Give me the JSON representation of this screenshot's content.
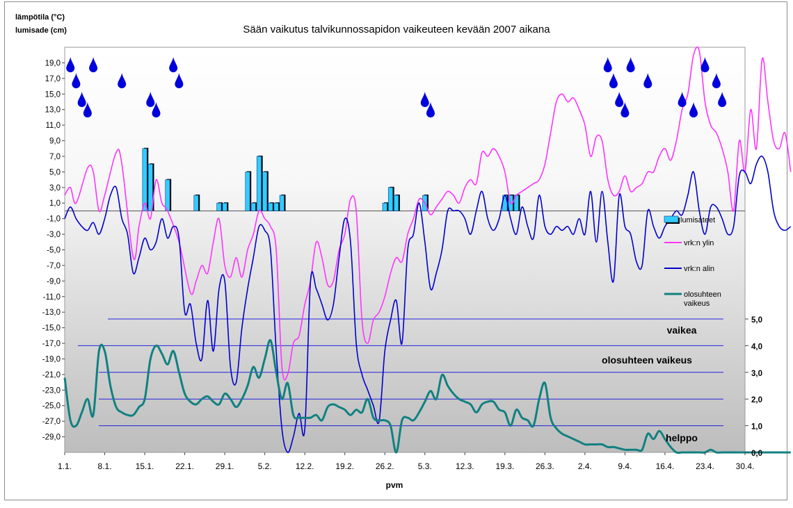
{
  "chart_data": {
    "type": "combo",
    "title": "Sään vaikutus talvikunnossapidon vaikeuteen kevään 2007 aikana",
    "ylabel_line1": "lämpötila (°C)",
    "ylabel_line2": "lumisade (cm)",
    "xlabel": "pvm",
    "x_tick_labels": [
      "1.1.",
      "8.1.",
      "15.1.",
      "22.1.",
      "29.1.",
      "5.2.",
      "12.2.",
      "19.2.",
      "26.2.",
      "5.3.",
      "12.3.",
      "19.3.",
      "26.3.",
      "2.4.",
      "9.4.",
      "16.4.",
      "23.4.",
      "30.4."
    ],
    "y_left_range": [
      -31,
      21
    ],
    "y_left_ticks": [
      "19,0",
      "17,0",
      "15,0",
      "13,0",
      "11,0",
      "9,0",
      "7,0",
      "5,0",
      "3,0",
      "1,0",
      "-1,0",
      "-3,0",
      "-5,0",
      "-7,0",
      "-9,0",
      "-11,0",
      "-13,0",
      "-15,0",
      "-17,0",
      "-19,0",
      "-21,0",
      "-23,0",
      "-25,0",
      "-27,0",
      "-29,0"
    ],
    "y_right_range": [
      0,
      5
    ],
    "y_right_ticks": [
      "0,0",
      "1,0",
      "2,0",
      "3,0",
      "4,0",
      "5,0"
    ],
    "legend": [
      "lumisateet",
      "vrk:n ylin",
      "vrk:n alin",
      "olosuhteen vaikeus"
    ],
    "band_labels": {
      "high": "vaikea",
      "mid": "olosuhteen vaikeus",
      "low": "helppo"
    },
    "colors": {
      "snow": "#33ccff",
      "tmax": "#ff33ff",
      "tmin": "#0000cc",
      "difficulty": "#118080",
      "grid": "#2222dd",
      "rain": "#0000dd"
    },
    "snowfall_cm": [
      {
        "day": 15,
        "cm": 8
      },
      {
        "day": 16,
        "cm": 6
      },
      {
        "day": 19,
        "cm": 4
      },
      {
        "day": 24,
        "cm": 2
      },
      {
        "day": 28,
        "cm": 1
      },
      {
        "day": 29,
        "cm": 1
      },
      {
        "day": 33,
        "cm": 5
      },
      {
        "day": 34,
        "cm": 1
      },
      {
        "day": 35,
        "cm": 7
      },
      {
        "day": 36,
        "cm": 5
      },
      {
        "day": 37,
        "cm": 1
      },
      {
        "day": 38,
        "cm": 1
      },
      {
        "day": 39,
        "cm": 2
      },
      {
        "day": 57,
        "cm": 1
      },
      {
        "day": 58,
        "cm": 3
      },
      {
        "day": 59,
        "cm": 2
      },
      {
        "day": 64,
        "cm": 2
      },
      {
        "day": 78,
        "cm": 2
      },
      {
        "day": 79,
        "cm": 2
      },
      {
        "day": 80,
        "cm": 2
      }
    ],
    "tmax": [
      [
        1,
        2
      ],
      [
        2,
        3
      ],
      [
        3,
        1
      ],
      [
        5,
        5.5
      ],
      [
        6,
        5
      ],
      [
        7,
        0
      ],
      [
        8,
        2
      ],
      [
        10,
        7.5
      ],
      [
        11,
        6
      ],
      [
        13,
        -6
      ],
      [
        14,
        -2
      ],
      [
        15,
        1
      ],
      [
        16,
        -1
      ],
      [
        17,
        4
      ],
      [
        18,
        1
      ],
      [
        19,
        0
      ],
      [
        21,
        -4
      ],
      [
        23,
        -10.5
      ],
      [
        24,
        -9
      ],
      [
        25,
        -7
      ],
      [
        26,
        -8
      ],
      [
        27,
        -4
      ],
      [
        28,
        -1
      ],
      [
        29,
        -7
      ],
      [
        30,
        -8.5
      ],
      [
        31,
        -6
      ],
      [
        32,
        -8.5
      ],
      [
        33,
        -5
      ],
      [
        34,
        -3
      ],
      [
        35,
        0
      ],
      [
        36,
        -1
      ],
      [
        37,
        -2
      ],
      [
        38,
        -5
      ],
      [
        39,
        -20
      ],
      [
        40,
        -21
      ],
      [
        41,
        -17
      ],
      [
        42,
        -16
      ],
      [
        43,
        -12
      ],
      [
        44,
        -9
      ],
      [
        45,
        -4
      ],
      [
        46,
        -6
      ],
      [
        47,
        -9.5
      ],
      [
        48,
        -9
      ],
      [
        49,
        -5
      ],
      [
        50,
        -3
      ],
      [
        51,
        1.5
      ],
      [
        52,
        0
      ],
      [
        53,
        -14
      ],
      [
        54,
        -17
      ],
      [
        55,
        -14
      ],
      [
        56,
        -13
      ],
      [
        57,
        -11
      ],
      [
        58,
        -8
      ],
      [
        59,
        -6
      ],
      [
        60,
        -6.5
      ],
      [
        61,
        -3
      ],
      [
        62,
        -1
      ],
      [
        63,
        1.5
      ],
      [
        64,
        1
      ],
      [
        65,
        -0.5
      ],
      [
        66,
        0.5
      ],
      [
        67,
        1.5
      ],
      [
        68,
        2.5
      ],
      [
        69,
        2
      ],
      [
        70,
        1
      ],
      [
        71,
        3
      ],
      [
        72,
        4
      ],
      [
        73,
        3.5
      ],
      [
        74,
        7.5
      ],
      [
        75,
        7
      ],
      [
        76,
        8
      ],
      [
        77,
        7
      ],
      [
        78,
        5
      ],
      [
        79,
        1
      ],
      [
        80,
        2
      ],
      [
        81,
        2.5
      ],
      [
        82,
        3
      ],
      [
        83,
        3.5
      ],
      [
        84,
        4
      ],
      [
        85,
        6
      ],
      [
        86,
        10
      ],
      [
        87,
        14
      ],
      [
        88,
        15
      ],
      [
        89,
        14
      ],
      [
        90,
        14.5
      ],
      [
        91,
        13
      ],
      [
        92,
        11
      ],
      [
        93,
        7
      ],
      [
        94,
        9.5
      ],
      [
        95,
        9
      ],
      [
        96,
        4
      ],
      [
        97,
        2
      ],
      [
        98,
        2.5
      ],
      [
        99,
        4.5
      ],
      [
        100,
        2.5
      ],
      [
        101,
        3
      ],
      [
        102,
        3.5
      ],
      [
        103,
        5
      ],
      [
        104,
        5
      ],
      [
        105,
        7
      ],
      [
        106,
        8
      ],
      [
        107,
        6.5
      ],
      [
        108,
        9
      ],
      [
        109,
        13
      ],
      [
        110,
        15
      ],
      [
        111,
        20
      ],
      [
        112,
        20.5
      ],
      [
        113,
        14
      ],
      [
        114,
        11
      ],
      [
        115,
        10
      ],
      [
        116,
        8
      ],
      [
        117,
        5
      ],
      [
        118,
        0
      ],
      [
        119,
        9
      ],
      [
        120,
        5
      ],
      [
        121,
        13
      ],
      [
        122,
        8
      ],
      [
        123,
        19.5
      ],
      [
        124,
        14
      ],
      [
        125,
        9
      ],
      [
        126,
        8
      ],
      [
        127,
        10
      ],
      [
        128,
        5
      ]
    ],
    "tmin": [
      [
        1,
        -1
      ],
      [
        2,
        0.5
      ],
      [
        3,
        -1
      ],
      [
        4,
        -2
      ],
      [
        5,
        -2.5
      ],
      [
        6,
        -1.5
      ],
      [
        7,
        -3
      ],
      [
        8,
        -1
      ],
      [
        9,
        2
      ],
      [
        10,
        3
      ],
      [
        11,
        -1
      ],
      [
        12,
        -3
      ],
      [
        13,
        -8
      ],
      [
        14,
        -6
      ],
      [
        15,
        -3.5
      ],
      [
        16,
        -5
      ],
      [
        17,
        -4
      ],
      [
        18,
        -1
      ],
      [
        19,
        -3.5
      ],
      [
        20,
        -2
      ],
      [
        21,
        -3.5
      ],
      [
        22,
        -13
      ],
      [
        23,
        -12
      ],
      [
        24,
        -17
      ],
      [
        25,
        -19
      ],
      [
        26,
        -11.5
      ],
      [
        27,
        -18
      ],
      [
        28,
        -10
      ],
      [
        29,
        -9
      ],
      [
        30,
        -20
      ],
      [
        31,
        -22
      ],
      [
        32,
        -15
      ],
      [
        33,
        -10
      ],
      [
        34,
        -6
      ],
      [
        35,
        -2
      ],
      [
        36,
        -2.5
      ],
      [
        37,
        -5
      ],
      [
        38,
        -18
      ],
      [
        39,
        -28
      ],
      [
        40,
        -31
      ],
      [
        41,
        -29
      ],
      [
        42,
        -26
      ],
      [
        43,
        -28
      ],
      [
        44,
        -9
      ],
      [
        45,
        -10
      ],
      [
        46,
        -12
      ],
      [
        47,
        -14
      ],
      [
        48,
        -12
      ],
      [
        49,
        -6
      ],
      [
        50,
        -1
      ],
      [
        51,
        -4
      ],
      [
        52,
        -17
      ],
      [
        53,
        -21
      ],
      [
        54,
        -23
      ],
      [
        55,
        -25
      ],
      [
        56,
        -27
      ],
      [
        57,
        -18
      ],
      [
        58,
        -14
      ],
      [
        59,
        -11.5
      ],
      [
        60,
        -17
      ],
      [
        61,
        -5
      ],
      [
        62,
        -3
      ],
      [
        63,
        1
      ],
      [
        64,
        -4
      ],
      [
        65,
        -10
      ],
      [
        66,
        -8
      ],
      [
        67,
        -5
      ],
      [
        68,
        0
      ],
      [
        69,
        0
      ],
      [
        70,
        0
      ],
      [
        71,
        -1
      ],
      [
        72,
        -3
      ],
      [
        73,
        0
      ],
      [
        74,
        2.5
      ],
      [
        75,
        -1
      ],
      [
        76,
        -2.5
      ],
      [
        77,
        -1
      ],
      [
        78,
        2
      ],
      [
        79,
        -1
      ],
      [
        80,
        -3
      ],
      [
        81,
        0.5
      ],
      [
        82,
        -2
      ],
      [
        83,
        -3.5
      ],
      [
        84,
        2
      ],
      [
        85,
        -2
      ],
      [
        86,
        -3
      ],
      [
        87,
        -2
      ],
      [
        88,
        -2.5
      ],
      [
        89,
        -2
      ],
      [
        90,
        -3
      ],
      [
        91,
        -1
      ],
      [
        92,
        -3
      ],
      [
        93,
        2.5
      ],
      [
        94,
        -4
      ],
      [
        95,
        2.5
      ],
      [
        96,
        -4
      ],
      [
        97,
        -9
      ],
      [
        98,
        2
      ],
      [
        99,
        -2
      ],
      [
        100,
        -3
      ],
      [
        101,
        -6.5
      ],
      [
        102,
        -7
      ],
      [
        103,
        0
      ],
      [
        104,
        -2
      ],
      [
        105,
        -3.5
      ],
      [
        106,
        -2
      ],
      [
        107,
        -1
      ],
      [
        108,
        0
      ],
      [
        109,
        -0.5
      ],
      [
        110,
        2
      ],
      [
        111,
        5
      ],
      [
        112,
        0
      ],
      [
        113,
        -3
      ],
      [
        114,
        0.5
      ],
      [
        115,
        0.5
      ],
      [
        116,
        -1
      ],
      [
        117,
        -3
      ],
      [
        118,
        -2
      ],
      [
        119,
        4.5
      ],
      [
        120,
        5
      ],
      [
        121,
        3.5
      ],
      [
        122,
        6
      ],
      [
        123,
        7
      ],
      [
        124,
        5
      ],
      [
        125,
        0
      ],
      [
        126,
        -2
      ],
      [
        127,
        -2.5
      ],
      [
        128,
        -2
      ]
    ],
    "difficulty": [
      [
        1,
        2.8
      ],
      [
        2,
        1.2
      ],
      [
        3,
        1.0
      ],
      [
        4,
        1.5
      ],
      [
        5,
        2.0
      ],
      [
        6,
        1.4
      ],
      [
        7,
        3.8
      ],
      [
        8,
        3.8
      ],
      [
        9,
        2.5
      ],
      [
        10,
        1.7
      ],
      [
        11,
        1.5
      ],
      [
        12,
        1.4
      ],
      [
        13,
        1.4
      ],
      [
        14,
        1.7
      ],
      [
        15,
        2.0
      ],
      [
        16,
        3.5
      ],
      [
        17,
        4.0
      ],
      [
        18,
        3.7
      ],
      [
        19,
        3.3
      ],
      [
        20,
        3.8
      ],
      [
        21,
        3.0
      ],
      [
        22,
        2.2
      ],
      [
        23,
        1.9
      ],
      [
        24,
        1.8
      ],
      [
        25,
        2.0
      ],
      [
        26,
        2.1
      ],
      [
        27,
        1.9
      ],
      [
        28,
        1.8
      ],
      [
        29,
        2.2
      ],
      [
        30,
        2.0
      ],
      [
        31,
        1.7
      ],
      [
        32,
        2.0
      ],
      [
        33,
        2.5
      ],
      [
        34,
        3.2
      ],
      [
        35,
        2.8
      ],
      [
        36,
        3.5
      ],
      [
        37,
        4.2
      ],
      [
        38,
        3.0
      ],
      [
        39,
        2.0
      ],
      [
        40,
        2.6
      ],
      [
        41,
        1.4
      ],
      [
        42,
        1.3
      ],
      [
        43,
        1.3
      ],
      [
        44,
        1.3
      ],
      [
        45,
        1.4
      ],
      [
        46,
        1.2
      ],
      [
        47,
        1.7
      ],
      [
        48,
        1.8
      ],
      [
        49,
        1.7
      ],
      [
        50,
        1.6
      ],
      [
        51,
        1.4
      ],
      [
        52,
        1.6
      ],
      [
        53,
        1.5
      ],
      [
        54,
        2.0
      ],
      [
        55,
        1.3
      ],
      [
        56,
        1.2
      ],
      [
        57,
        1.2
      ],
      [
        58,
        1.0
      ],
      [
        59,
        0.0
      ],
      [
        60,
        1.2
      ],
      [
        61,
        1.3
      ],
      [
        62,
        1.2
      ],
      [
        63,
        1.5
      ],
      [
        64,
        1.9
      ],
      [
        65,
        2.3
      ],
      [
        66,
        2.0
      ],
      [
        67,
        2.9
      ],
      [
        68,
        2.5
      ],
      [
        69,
        2.2
      ],
      [
        70,
        2.0
      ],
      [
        71,
        1.9
      ],
      [
        72,
        1.8
      ],
      [
        73,
        1.5
      ],
      [
        74,
        1.8
      ],
      [
        75,
        1.9
      ],
      [
        76,
        1.9
      ],
      [
        77,
        1.6
      ],
      [
        78,
        1.5
      ],
      [
        79,
        1.0
      ],
      [
        80,
        1.6
      ],
      [
        81,
        1.3
      ],
      [
        82,
        1.2
      ],
      [
        83,
        1.0
      ],
      [
        84,
        2.0
      ],
      [
        85,
        2.6
      ],
      [
        86,
        1.3
      ],
      [
        87,
        0.9
      ],
      [
        88,
        0.7
      ],
      [
        89,
        0.6
      ],
      [
        90,
        0.5
      ],
      [
        91,
        0.4
      ],
      [
        92,
        0.3
      ],
      [
        93,
        0.3
      ],
      [
        94,
        0.3
      ],
      [
        95,
        0.3
      ],
      [
        96,
        0.2
      ],
      [
        97,
        0.2
      ],
      [
        98,
        0.15
      ],
      [
        99,
        0.1
      ],
      [
        100,
        0.1
      ],
      [
        101,
        0.1
      ],
      [
        102,
        0.1
      ],
      [
        103,
        0.7
      ],
      [
        104,
        0.5
      ],
      [
        105,
        0.8
      ],
      [
        106,
        0.5
      ],
      [
        107,
        0.2
      ],
      [
        108,
        0.0
      ],
      [
        109,
        0.0
      ],
      [
        110,
        0.0
      ],
      [
        111,
        0.0
      ],
      [
        112,
        0.0
      ],
      [
        113,
        0.0
      ],
      [
        114,
        0.1
      ],
      [
        115,
        0.0
      ],
      [
        116,
        0.0
      ],
      [
        117,
        0.0
      ],
      [
        118,
        0.0
      ],
      [
        119,
        0.0
      ],
      [
        120,
        0.0
      ],
      [
        121,
        0.0
      ],
      [
        122,
        0.0
      ],
      [
        123,
        0.0
      ],
      [
        124,
        0.0
      ],
      [
        125,
        0.0
      ],
      [
        126,
        0.0
      ],
      [
        127,
        0.0
      ],
      [
        128,
        0.0
      ]
    ],
    "difficulty_reference_lines": [
      1.0,
      2.0,
      3.0,
      4.0,
      5.0
    ],
    "rain_marker_days": [
      2,
      3,
      4,
      5,
      6,
      11,
      16,
      17,
      20,
      21,
      64,
      65,
      96,
      97,
      98,
      99,
      100,
      103,
      109,
      111,
      113,
      115,
      116
    ]
  }
}
